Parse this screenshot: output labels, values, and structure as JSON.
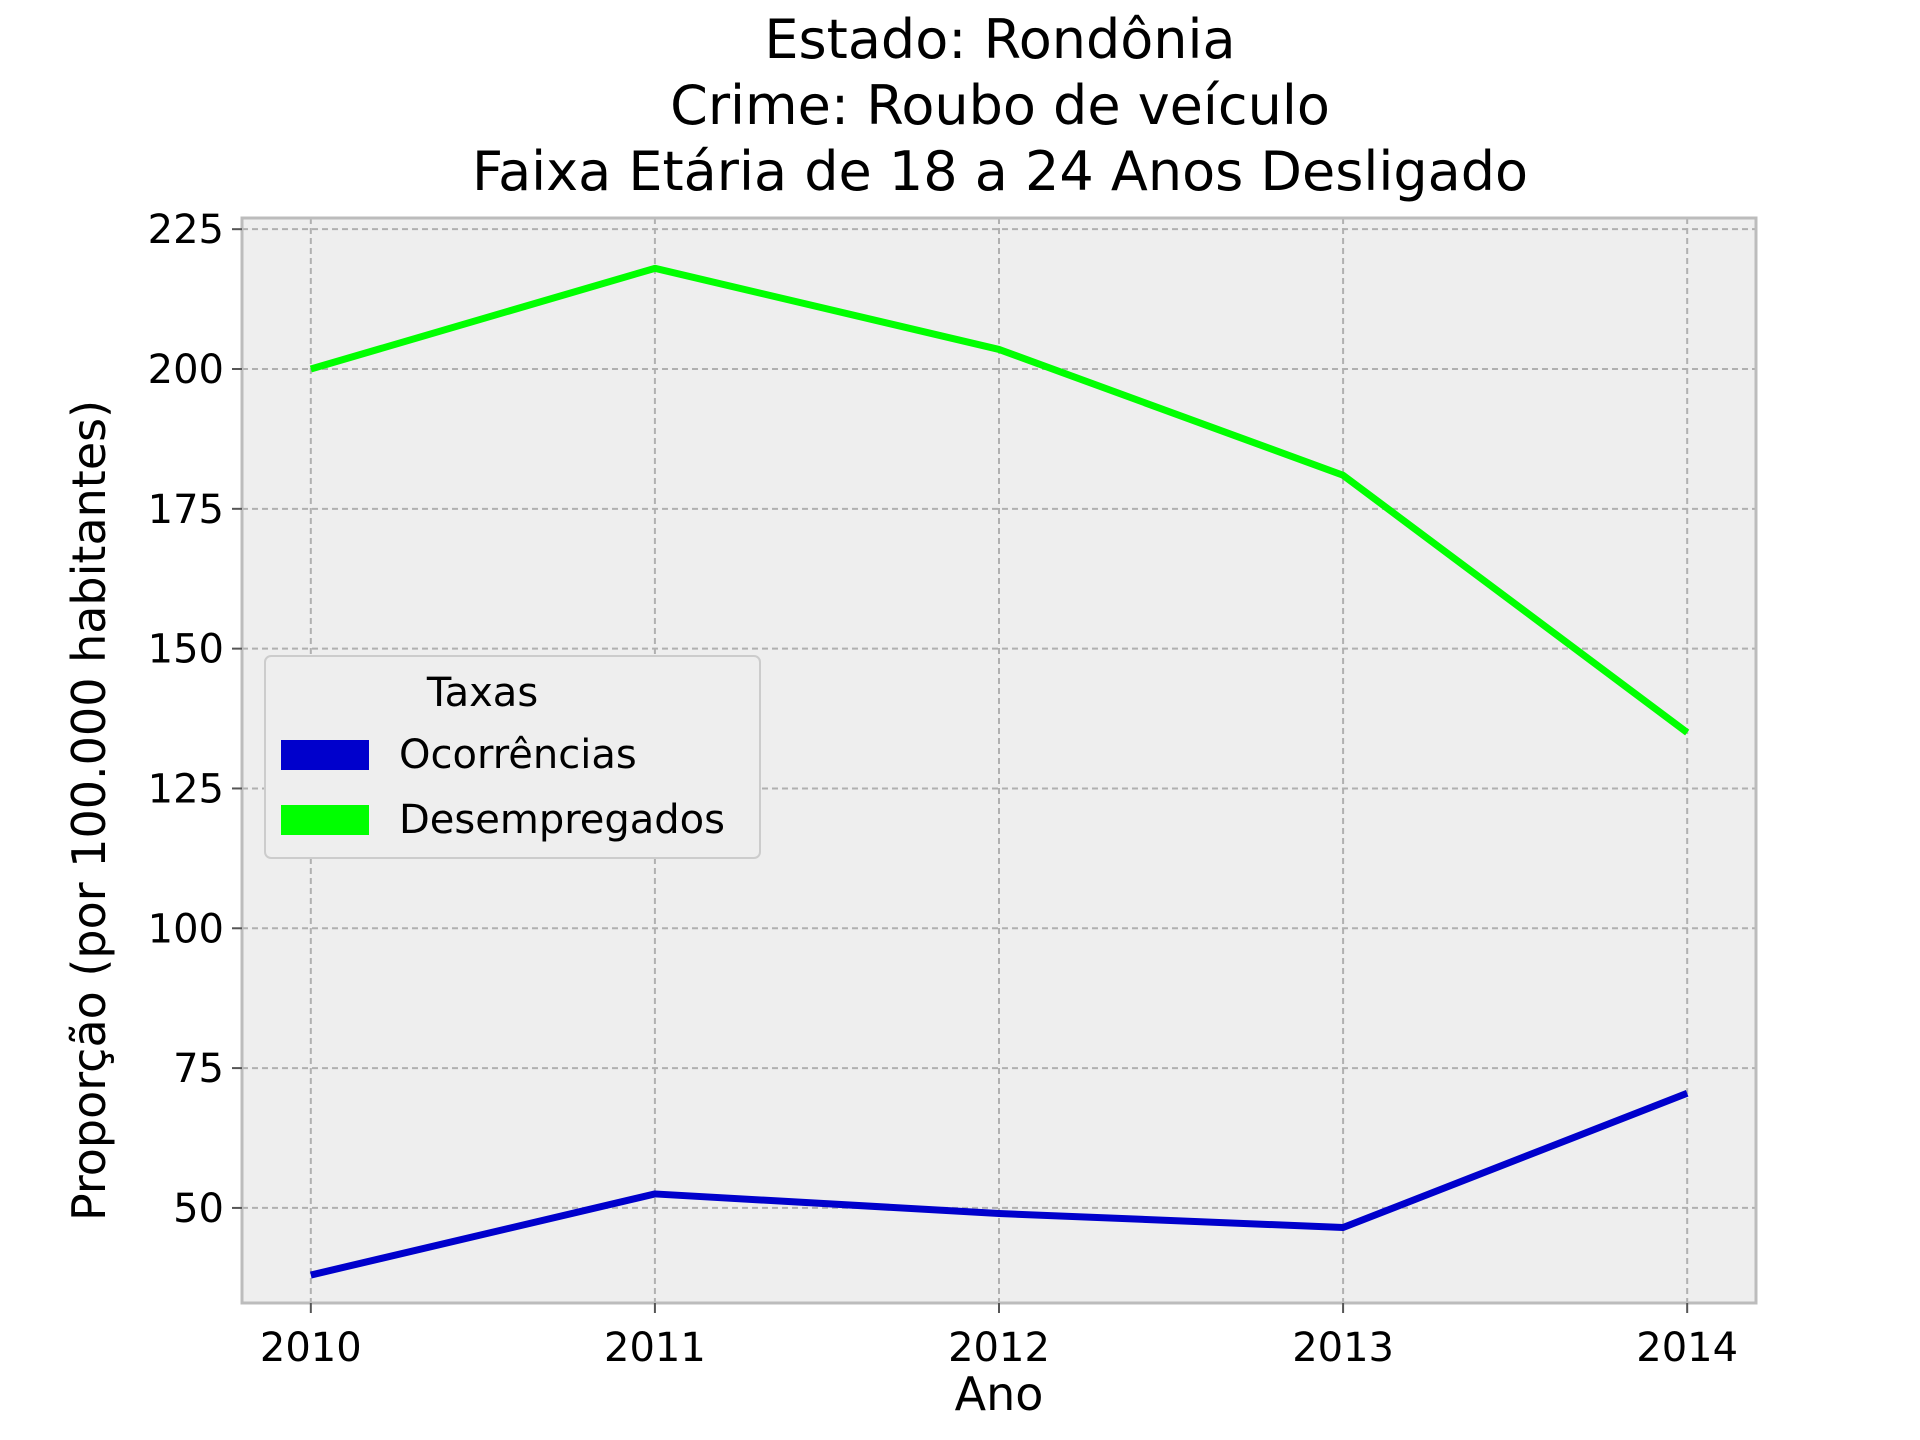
{
  "chart_data": {
    "type": "line",
    "title_lines": [
      "Estado: Rondônia",
      "Crime: Roubo de veículo",
      "Faixa Etária de 18 a 24 Anos   Desligado"
    ],
    "xlabel": "Ano",
    "ylabel": "Proporção (por 100.000 habitantes)",
    "x": [
      2010,
      2011,
      2012,
      2013,
      2014
    ],
    "x_tick_labels": [
      "2010",
      "2011",
      "2012",
      "2013",
      "2014"
    ],
    "xlim": [
      2009.8,
      2014.2
    ],
    "ylim": [
      33,
      227
    ],
    "y_ticks": [
      50,
      75,
      100,
      125,
      150,
      175,
      200,
      225
    ],
    "y_tick_labels": [
      "50",
      "75",
      "100",
      "125",
      "150",
      "175",
      "200",
      "225"
    ],
    "grid": true,
    "legend": {
      "title": "Taxas",
      "placement": "center-left"
    },
    "series": [
      {
        "name": "Ocorrências",
        "color": "#0000cc",
        "values": [
          38.0,
          52.5,
          49.0,
          46.5,
          70.5
        ]
      },
      {
        "name": "Desempregados",
        "color": "#00ff00",
        "values": [
          200.0,
          218.0,
          203.5,
          181.0,
          135.0
        ]
      }
    ],
    "plot_background": "#eeeeee",
    "frame_color": "#bcbcbc"
  }
}
